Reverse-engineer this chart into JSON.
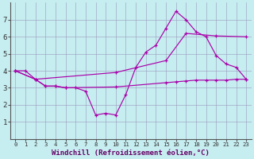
{
  "background_color": "#c6edf0",
  "line_color": "#aa00aa",
  "grid_color": "#9999bb",
  "xlabel": "Windchill (Refroidissement éolien,°C)",
  "xlabel_fontsize": 6.5,
  "ytick_fontsize": 6.5,
  "xtick_fontsize": 5.2,
  "xlim": [
    -0.5,
    23.5
  ],
  "ylim": [
    0,
    8
  ],
  "yticks": [
    1,
    2,
    3,
    4,
    5,
    6,
    7
  ],
  "xticks": [
    0,
    1,
    2,
    3,
    4,
    5,
    6,
    7,
    8,
    9,
    10,
    11,
    12,
    13,
    14,
    15,
    16,
    17,
    18,
    19,
    20,
    21,
    22,
    23
  ],
  "line1_x": [
    0,
    1,
    2,
    3,
    4,
    5,
    6,
    7,
    8,
    9,
    10,
    11,
    12,
    13,
    14,
    15,
    16,
    17,
    18,
    19,
    20,
    21,
    22,
    23
  ],
  "line1_y": [
    4.0,
    4.0,
    3.5,
    3.1,
    3.1,
    3.0,
    3.0,
    2.8,
    1.4,
    1.5,
    1.4,
    2.6,
    4.2,
    5.1,
    5.5,
    6.5,
    7.5,
    7.0,
    6.3,
    6.0,
    4.9,
    4.4,
    4.2,
    3.5
  ],
  "line2_x": [
    0,
    2,
    3,
    4,
    5,
    10,
    15,
    16,
    17,
    18,
    19,
    20,
    21,
    22,
    23
  ],
  "line2_y": [
    4.0,
    3.5,
    3.1,
    3.1,
    3.0,
    3.05,
    3.3,
    3.35,
    3.4,
    3.45,
    3.45,
    3.45,
    3.45,
    3.5,
    3.5
  ],
  "line3_x": [
    0,
    2,
    10,
    15,
    17,
    20,
    23
  ],
  "line3_y": [
    4.0,
    3.5,
    3.9,
    4.6,
    6.2,
    6.05,
    6.0
  ]
}
